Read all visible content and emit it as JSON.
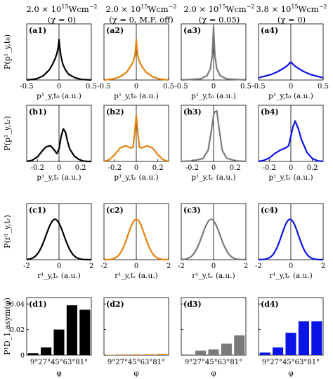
{
  "headers": [
    {
      "line1": "2.0 × 10",
      "exp": "15",
      "unit": "Wcm",
      "unitexp": "−2",
      "line2": "(χ = 0)"
    },
    {
      "line1": "2.0 × 10",
      "exp": "15",
      "unit": "Wcm",
      "unitexp": "−2",
      "line2": "(χ = 0, M.F. off)"
    },
    {
      "line1": "2.0 × 10",
      "exp": "15",
      "unit": "Wcm",
      "unitexp": "−2",
      "line2": "(χ = 0.05)"
    },
    {
      "line1": "3.8 × 10",
      "exp": "15",
      "unit": "Wcm",
      "unitexp": "−2",
      "line2": "(χ = 0)"
    }
  ],
  "colors": [
    "#000000",
    "#e8820c",
    "#7a7a7a",
    "#0a14e6"
  ],
  "row_ylabels": [
    "P(p¹_y,t₀)",
    "P(p¹_y,tᵣ)",
    "P(r¹_y,tᵣ)",
    "P¹D_1,asym(φ)"
  ],
  "row_xlabels": [
    "p¹_y,t₀ (a.u.)",
    "p¹_y,tᵣ (a.u.)",
    "r¹_y,tᵣ (a.u.)",
    "φ"
  ],
  "chart_data": [
    {
      "row": "a",
      "type": "line",
      "panel_labels": [
        "(a1)",
        "(a2)",
        "(a3)",
        "(a4)"
      ],
      "xlim": [
        -0.5,
        0.5
      ],
      "xticks": [
        -0.5,
        0,
        0.5
      ],
      "xticklabels": [
        "-0.5",
        "0",
        "0.5"
      ],
      "ylim": [
        0,
        1
      ],
      "series": [
        {
          "x": [
            -0.5,
            -0.35,
            -0.25,
            -0.15,
            -0.1,
            -0.06,
            -0.03,
            -0.01,
            0,
            0.01,
            0.03,
            0.06,
            0.1,
            0.15,
            0.25,
            0.35,
            0.5
          ],
          "y": [
            0.0,
            0.02,
            0.07,
            0.18,
            0.28,
            0.38,
            0.48,
            0.6,
            0.72,
            0.6,
            0.42,
            0.28,
            0.18,
            0.1,
            0.04,
            0.01,
            0.0
          ]
        },
        {
          "x": [
            -0.5,
            -0.35,
            -0.25,
            -0.15,
            -0.1,
            -0.05,
            -0.02,
            -0.005,
            0,
            0.005,
            0.02,
            0.05,
            0.1,
            0.15,
            0.25,
            0.35,
            0.5
          ],
          "y": [
            0.0,
            0.02,
            0.06,
            0.14,
            0.22,
            0.32,
            0.45,
            0.62,
            0.72,
            0.62,
            0.45,
            0.32,
            0.22,
            0.14,
            0.06,
            0.02,
            0.0
          ]
        },
        {
          "x": [
            -0.5,
            -0.2,
            -0.1,
            -0.05,
            -0.02,
            -0.01,
            0,
            0.01,
            0.02,
            0.05,
            0.1,
            0.2,
            0.5
          ],
          "y": [
            0.0,
            0.02,
            0.08,
            0.2,
            0.45,
            0.7,
            0.95,
            0.7,
            0.45,
            0.2,
            0.08,
            0.02,
            0.0
          ]
        },
        {
          "x": [
            -0.5,
            -0.4,
            -0.3,
            -0.2,
            -0.1,
            -0.05,
            -0.02,
            0,
            0.02,
            0.05,
            0.1,
            0.2,
            0.3,
            0.4,
            0.5
          ],
          "y": [
            0.04,
            0.07,
            0.1,
            0.15,
            0.22,
            0.26,
            0.3,
            0.32,
            0.3,
            0.26,
            0.22,
            0.15,
            0.1,
            0.07,
            0.04
          ]
        }
      ]
    },
    {
      "row": "b",
      "type": "line",
      "panel_labels": [
        "(b1)",
        "(b2)",
        "(b3)",
        "(b4)"
      ],
      "xlim": [
        -0.3,
        0.3
      ],
      "xticks": [
        -0.2,
        0,
        0.2
      ],
      "xticklabels": [
        "-0.2",
        "0",
        "0.2"
      ],
      "ylim": [
        0,
        1
      ],
      "series": [
        {
          "x": [
            -0.3,
            -0.25,
            -0.2,
            -0.15,
            -0.12,
            -0.08,
            -0.05,
            -0.02,
            0,
            0.02,
            0.04,
            0.06,
            0.08,
            0.1,
            0.14,
            0.18,
            0.22,
            0.26,
            0.3
          ],
          "y": [
            0.0,
            0.02,
            0.08,
            0.2,
            0.26,
            0.28,
            0.22,
            0.14,
            0.22,
            0.45,
            0.58,
            0.52,
            0.35,
            0.22,
            0.1,
            0.04,
            0.01,
            0.0,
            0.0
          ]
        },
        {
          "x": [
            -0.3,
            -0.25,
            -0.2,
            -0.15,
            -0.1,
            -0.05,
            -0.03,
            -0.015,
            0,
            0.015,
            0.03,
            0.05,
            0.1,
            0.15,
            0.2,
            0.25,
            0.3
          ],
          "y": [
            0.0,
            0.03,
            0.12,
            0.24,
            0.28,
            0.24,
            0.25,
            0.5,
            0.82,
            0.5,
            0.25,
            0.24,
            0.28,
            0.24,
            0.12,
            0.03,
            0.0
          ]
        },
        {
          "x": [
            -0.3,
            -0.2,
            -0.1,
            -0.05,
            -0.02,
            0,
            0.01,
            0.03,
            0.05,
            0.08,
            0.12,
            0.2,
            0.3
          ],
          "y": [
            0.0,
            0.01,
            0.05,
            0.2,
            0.55,
            0.82,
            0.88,
            0.9,
            0.6,
            0.2,
            0.06,
            0.01,
            0.0
          ]
        },
        {
          "x": [
            -0.3,
            -0.25,
            -0.2,
            -0.15,
            -0.1,
            -0.05,
            -0.02,
            0,
            0.02,
            0.04,
            0.07,
            0.1,
            0.15,
            0.2,
            0.25,
            0.3
          ],
          "y": [
            0.0,
            0.02,
            0.06,
            0.14,
            0.2,
            0.24,
            0.28,
            0.45,
            0.62,
            0.72,
            0.58,
            0.38,
            0.16,
            0.05,
            0.01,
            0.0
          ]
        }
      ]
    },
    {
      "row": "c",
      "type": "line",
      "panel_labels": [
        "(c1)",
        "(c2)",
        "(c3)",
        "(c4)"
      ],
      "xlim": [
        -2,
        2
      ],
      "xticks": [
        -2,
        0,
        2
      ],
      "xticklabels": [
        "-2",
        "0",
        "2"
      ],
      "ylim": [
        0,
        1
      ],
      "series": [
        {
          "mu": -0.25,
          "sigma": 0.55,
          "peak": 0.72
        },
        {
          "mu": 0.0,
          "sigma": 0.52,
          "peak": 0.72
        },
        {
          "mu": -0.15,
          "sigma": 0.55,
          "peak": 0.72
        },
        {
          "mu": -0.05,
          "sigma": 0.52,
          "peak": 0.72
        }
      ]
    },
    {
      "row": "d",
      "type": "bar",
      "panel_labels": [
        "(d1)",
        "(d2)",
        "(d3)",
        "(d4)"
      ],
      "categories": [
        "9°",
        "27°",
        "45°",
        "63°",
        "81°"
      ],
      "bin_centers": [
        9,
        27,
        45,
        63,
        81
      ],
      "xlim": [
        0,
        90
      ],
      "ylim": [
        0,
        0.045
      ],
      "yticks": [
        0,
        0.02,
        0.04
      ],
      "yticklabels": [
        "0",
        "0.02",
        "0.04"
      ],
      "series": [
        {
          "values": [
            0.0015,
            0.006,
            0.02,
            0.039,
            0.0355
          ]
        },
        {
          "values": [
            0.0003,
            0.0005,
            0.0006,
            0.0007,
            0.001
          ]
        },
        {
          "values": [
            0.0005,
            0.0035,
            0.0045,
            0.009,
            0.0155
          ]
        },
        {
          "values": [
            0.002,
            0.006,
            0.0175,
            0.0265,
            0.0265
          ]
        }
      ]
    }
  ]
}
